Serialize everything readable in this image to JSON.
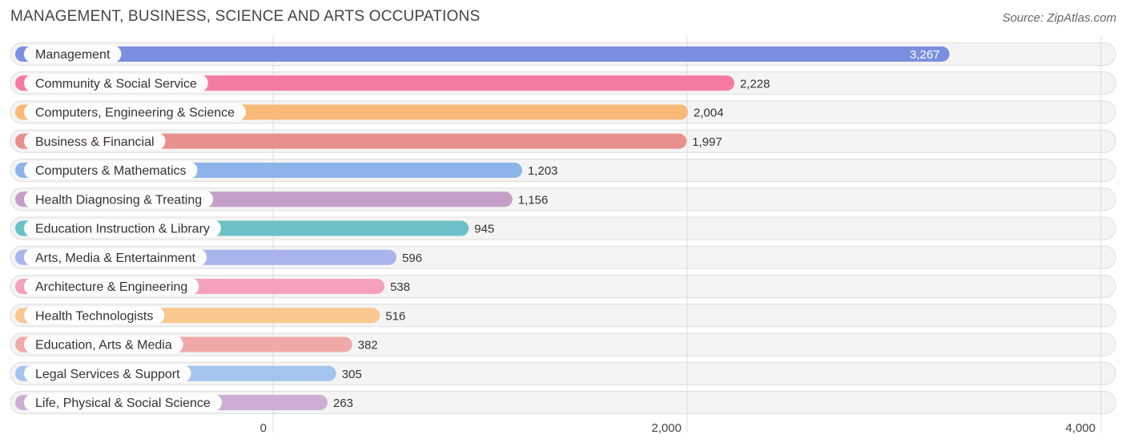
{
  "header": {
    "title": "MANAGEMENT, BUSINESS, SCIENCE AND ARTS OCCUPATIONS",
    "source": "Source: ZipAtlas.com"
  },
  "chart_data": {
    "type": "bar",
    "orientation": "horizontal",
    "title": "MANAGEMENT, BUSINESS, SCIENCE AND ARTS OCCUPATIONS",
    "xlim": [
      0,
      4000
    ],
    "ticks": [
      {
        "value": 0,
        "label": "0"
      },
      {
        "value": 2000,
        "label": "2,000"
      },
      {
        "value": 4000,
        "label": "4,000"
      }
    ],
    "grid": true,
    "categories": [
      "Management",
      "Community & Social Service",
      "Computers, Engineering & Science",
      "Business & Financial",
      "Computers & Mathematics",
      "Health Diagnosing & Treating",
      "Education Instruction & Library",
      "Arts, Media & Entertainment",
      "Architecture & Engineering",
      "Health Technologists",
      "Education, Arts & Media",
      "Legal Services & Support",
      "Life, Physical & Social Science"
    ],
    "values": [
      3267,
      2228,
      2004,
      1997,
      1203,
      1156,
      945,
      596,
      538,
      516,
      382,
      305,
      263
    ],
    "value_labels": [
      "3,267",
      "2,228",
      "2,004",
      "1,997",
      "1,203",
      "1,156",
      "945",
      "596",
      "538",
      "516",
      "382",
      "305",
      "263"
    ],
    "colors": [
      "#7b8fe0",
      "#f47aa0",
      "#f8b878",
      "#e8908c",
      "#8db4e8",
      "#c4a0c8",
      "#6cc0c8",
      "#aab4ec",
      "#f5a0bc",
      "#f8c890",
      "#f0a8a8",
      "#a4c4ee",
      "#ccaed4"
    ]
  }
}
